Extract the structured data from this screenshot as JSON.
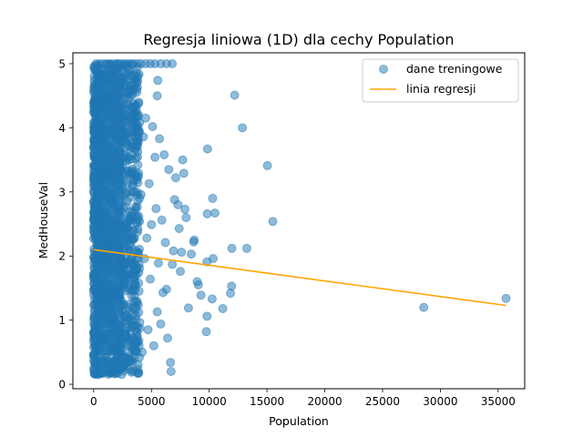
{
  "chart_data": {
    "type": "scatter",
    "title": "Regresja liniowa (1D) dla cechy Population",
    "xlabel": "Population",
    "ylabel": "MedHouseVal",
    "xlim": [
      -1800,
      37300
    ],
    "ylim": [
      -0.07,
      5.17
    ],
    "x_ticks": [
      0,
      5000,
      10000,
      15000,
      20000,
      25000,
      30000,
      35000
    ],
    "x_tick_labels": [
      "0",
      "5000",
      "10000",
      "15000",
      "20000",
      "25000",
      "30000",
      "35000"
    ],
    "y_ticks": [
      0,
      1,
      2,
      3,
      4,
      5
    ],
    "y_tick_labels": [
      "0",
      "1",
      "2",
      "3",
      "4",
      "5"
    ],
    "grid": false,
    "legend_position": "top-right",
    "colors": {
      "points": "#1f77b4",
      "line": "#ffa500"
    },
    "series": [
      {
        "name": "dane treningowe",
        "kind": "scatter",
        "points": [
          [
            28566,
            1.2
          ],
          [
            35682,
            1.34
          ],
          [
            15507,
            2.54
          ],
          [
            15037,
            3.41
          ],
          [
            12873,
            4.0
          ],
          [
            12203,
            4.51
          ],
          [
            13251,
            2.12
          ],
          [
            11956,
            2.12
          ],
          [
            11935,
            1.53
          ],
          [
            11836,
            1.42
          ],
          [
            11173,
            1.18
          ],
          [
            10500,
            2.67
          ],
          [
            10296,
            2.9
          ],
          [
            9851,
            3.67
          ],
          [
            9827,
            2.66
          ],
          [
            9803,
            1.91
          ],
          [
            9815,
            1.06
          ],
          [
            9750,
            0.82
          ],
          [
            10340,
            1.96
          ],
          [
            10250,
            1.33
          ],
          [
            9280,
            1.39
          ],
          [
            9060,
            1.55
          ],
          [
            8950,
            1.6
          ],
          [
            8700,
            2.25
          ],
          [
            8650,
            2.22
          ],
          [
            8450,
            2.03
          ],
          [
            8200,
            1.19
          ],
          [
            8000,
            2.6
          ],
          [
            7900,
            2.73
          ],
          [
            7800,
            3.29
          ],
          [
            7700,
            3.5
          ],
          [
            7600,
            2.06
          ],
          [
            7500,
            1.76
          ],
          [
            7400,
            2.43
          ],
          [
            7300,
            2.8
          ],
          [
            7100,
            3.22
          ],
          [
            7000,
            2.88
          ],
          [
            6900,
            2.08
          ],
          [
            6800,
            1.87
          ],
          [
            6700,
            0.2
          ],
          [
            6650,
            0.34
          ],
          [
            6500,
            3.35
          ],
          [
            6400,
            0.72
          ],
          [
            6300,
            1.48
          ],
          [
            6200,
            2.21
          ],
          [
            6100,
            3.58
          ],
          [
            6000,
            1.43
          ],
          [
            5900,
            2.56
          ],
          [
            5800,
            0.94
          ],
          [
            5700,
            3.83
          ],
          [
            5600,
            1.89
          ],
          [
            5500,
            1.13
          ],
          [
            5400,
            2.74
          ],
          [
            5300,
            3.54
          ],
          [
            5200,
            0.6
          ],
          [
            5100,
            4.02
          ],
          [
            5000,
            2.49
          ],
          [
            4900,
            1.64
          ],
          [
            4800,
            3.13
          ],
          [
            4700,
            0.85
          ],
          [
            4600,
            2.28
          ],
          [
            4500,
            4.15
          ],
          [
            4400,
            1.96
          ],
          [
            4300,
            3.86
          ],
          [
            4200,
            0.5
          ],
          [
            4100,
            2.96
          ],
          [
            5550,
            4.74
          ],
          [
            5500,
            4.5
          ],
          [
            6800,
            5.0
          ],
          [
            6300,
            5.0
          ],
          [
            5800,
            5.0
          ],
          [
            5300,
            5.0
          ],
          [
            4900,
            5.0
          ],
          [
            4500,
            5.0
          ],
          [
            4100,
            5.0
          ],
          [
            3800,
            5.0
          ],
          [
            3500,
            5.0
          ],
          [
            3200,
            5.0
          ],
          [
            2900,
            5.0
          ],
          [
            2600,
            5.0
          ],
          [
            2300,
            5.0
          ],
          [
            2000,
            5.0
          ],
          [
            1700,
            5.0
          ],
          [
            1400,
            5.0
          ],
          [
            1100,
            5.0
          ],
          [
            800,
            5.0
          ],
          [
            500,
            5.0
          ],
          [
            200,
            5.0
          ],
          [
            3900,
            4.4
          ],
          [
            3700,
            4.2
          ],
          [
            3400,
            4.61
          ],
          [
            3000,
            3.72
          ],
          [
            2700,
            4.86
          ],
          [
            2500,
            4.05
          ],
          [
            3600,
            3.22
          ],
          [
            3300,
            2.56
          ],
          [
            3700,
            1.81
          ],
          [
            3900,
            1.12
          ],
          [
            3500,
            0.63
          ],
          [
            3200,
            0.36
          ],
          [
            2800,
            0.4
          ],
          [
            2400,
            0.27
          ],
          [
            2000,
            0.3
          ],
          [
            1600,
            0.22
          ],
          [
            1200,
            0.19
          ],
          [
            800,
            0.17
          ],
          [
            400,
            0.15
          ],
          [
            100,
            0.16
          ],
          [
            3600,
            4.74
          ],
          [
            2900,
            4.51
          ],
          [
            2100,
            4.93
          ],
          [
            1500,
            4.84
          ],
          [
            900,
            4.63
          ],
          [
            300,
            4.45
          ]
        ],
        "dense_band": {
          "x_range": [
            0,
            4000
          ],
          "y_range": [
            0.15,
            5.0
          ]
        }
      },
      {
        "name": "linia regresji",
        "kind": "line",
        "points": [
          [
            0,
            2.1
          ],
          [
            35682,
            1.23
          ]
        ]
      }
    ]
  }
}
